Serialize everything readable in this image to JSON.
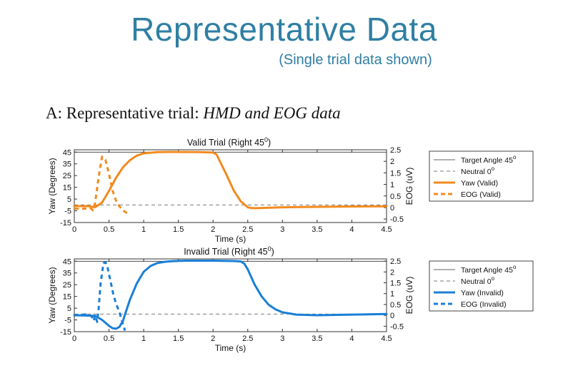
{
  "page": {
    "title": "Representative Data",
    "subtitle": "(Single trial data shown)",
    "section_prefix": "A:",
    "section_text": " Representative trial: ",
    "section_italic": "HMD and EOG data"
  },
  "chart_data": [
    {
      "type": "line",
      "title": "Valid Trial (Right 45",
      "title_sup": "0",
      "title_close": ")",
      "xlabel": "Time (s)",
      "ylabel": "Yaw (Degrees)",
      "y2label": "EOG (uV)",
      "xlim": [
        0,
        4.5
      ],
      "ylim": [
        -15,
        47
      ],
      "y2lim": [
        -0.65,
        2.5
      ],
      "xticks": [
        "0",
        "0.5",
        "1",
        "1.5",
        "2",
        "2.5",
        "3",
        "3.5",
        "4",
        "4.5"
      ],
      "yticks": [
        "45",
        "35",
        "25",
        "15",
        "5",
        "-5",
        "-15"
      ],
      "y2ticks": [
        "2.5",
        "2",
        "1.5",
        "1",
        "0.5",
        "0",
        "-0.5"
      ],
      "target_angle": 45,
      "neutral": 0,
      "series": [
        {
          "name": "Yaw (Valid)",
          "axis": "left",
          "style": "solid",
          "color": "#f28a1e",
          "x": [
            0,
            0.2,
            0.3,
            0.4,
            0.5,
            0.6,
            0.7,
            0.8,
            0.9,
            1.0,
            1.1,
            1.2,
            1.4,
            1.6,
            1.8,
            2.0,
            2.05,
            2.1,
            2.2,
            2.3,
            2.4,
            2.5,
            2.55,
            2.6,
            2.7,
            2.8,
            3.0,
            3.5,
            4.0,
            4.5
          ],
          "y": [
            -1,
            -1,
            -2,
            2,
            12,
            23,
            32,
            38,
            42,
            44,
            44.5,
            45,
            45.2,
            45.1,
            45,
            44.6,
            43,
            37,
            25,
            12,
            3,
            -2,
            -2.6,
            -2.8,
            -2.6,
            -2.4,
            -2,
            -1.6,
            -1.3,
            -1.2
          ]
        },
        {
          "name": "EOG (Valid)",
          "axis": "right",
          "style": "dashed",
          "color": "#f28a1e",
          "x": [
            0,
            0.15,
            0.22,
            0.27,
            0.3,
            0.35,
            0.4,
            0.45,
            0.5,
            0.55,
            0.6,
            0.65,
            0.7,
            0.75,
            0.78
          ],
          "y": [
            -0.05,
            -0.05,
            0,
            -0.12,
            0.2,
            1.3,
            2.2,
            2.05,
            1.45,
            0.75,
            0.3,
            0.05,
            -0.12,
            -0.22,
            -0.25
          ]
        }
      ],
      "legend": [
        {
          "label": "Target Angle 45",
          "sup": "o",
          "style": "target"
        },
        {
          "label": "Neutral 0",
          "sup": "o",
          "style": "neutral"
        },
        {
          "label": "Yaw (Valid)",
          "sup": "",
          "style": "solid",
          "color": "#f28a1e"
        },
        {
          "label": "EOG (Valid)",
          "sup": "",
          "style": "dashed",
          "color": "#f28a1e"
        }
      ]
    },
    {
      "type": "line",
      "title": "Invalid Trial (Right 45",
      "title_sup": "0",
      "title_close": ")",
      "xlabel": "Time (s)",
      "ylabel": "Yaw (Degrees)",
      "y2label": "EOG (uV)",
      "xlim": [
        0,
        4.5
      ],
      "ylim": [
        -15,
        47
      ],
      "y2lim": [
        -0.75,
        2.6
      ],
      "xticks": [
        "0",
        "0.5",
        "1",
        "1.5",
        "2",
        "2.5",
        "3",
        "3.5",
        "4",
        "4.5"
      ],
      "yticks": [
        "45",
        "35",
        "25",
        "15",
        "5",
        "-5",
        "-15"
      ],
      "y2ticks": [
        "2.5",
        "2",
        "1.5",
        "1",
        "0.5",
        "0",
        "-0.5"
      ],
      "target_angle": 45,
      "neutral": 0,
      "series": [
        {
          "name": "Yaw (Invalid)",
          "axis": "left",
          "style": "solid",
          "color": "#1a7fd6",
          "x": [
            0,
            0.3,
            0.4,
            0.5,
            0.55,
            0.6,
            0.65,
            0.7,
            0.75,
            0.8,
            0.9,
            1.0,
            1.1,
            1.2,
            1.3,
            1.4,
            1.6,
            2.0,
            2.3,
            2.4,
            2.45,
            2.5,
            2.6,
            2.7,
            2.8,
            2.9,
            3.0,
            3.2,
            3.5,
            4.0,
            4.5
          ],
          "y": [
            -1,
            -1.5,
            -5,
            -10,
            -12,
            -12.5,
            -11,
            -6,
            3,
            12,
            26,
            36,
            41,
            43.5,
            44.5,
            45,
            45.5,
            45.5,
            45.2,
            44.8,
            43,
            38,
            25,
            15,
            8,
            4,
            1.5,
            -0.5,
            -1,
            -0.5,
            0
          ]
        },
        {
          "name": "EOG (Invalid)",
          "axis": "right",
          "style": "dashed",
          "color": "#1a7fd6",
          "x": [
            0,
            0.2,
            0.25,
            0.28,
            0.3,
            0.33,
            0.35,
            0.38,
            0.42,
            0.45,
            0.48,
            0.52,
            0.56,
            0.6,
            0.65,
            0.7,
            0.73
          ],
          "y": [
            0,
            0.05,
            -0.05,
            -0.25,
            0,
            -0.3,
            0.3,
            1.5,
            2.4,
            2.45,
            2.2,
            1.6,
            1.0,
            0.55,
            0.15,
            -0.4,
            -0.7
          ]
        }
      ],
      "legend": [
        {
          "label": "Target Angle 45",
          "sup": "o",
          "style": "target"
        },
        {
          "label": "Neutral 0",
          "sup": "o",
          "style": "neutral"
        },
        {
          "label": "Yaw (Invalid)",
          "sup": "",
          "style": "solid",
          "color": "#1a7fd6"
        },
        {
          "label": "EOG (Invalid)",
          "sup": "",
          "style": "dashed",
          "color": "#1a7fd6"
        }
      ]
    }
  ]
}
